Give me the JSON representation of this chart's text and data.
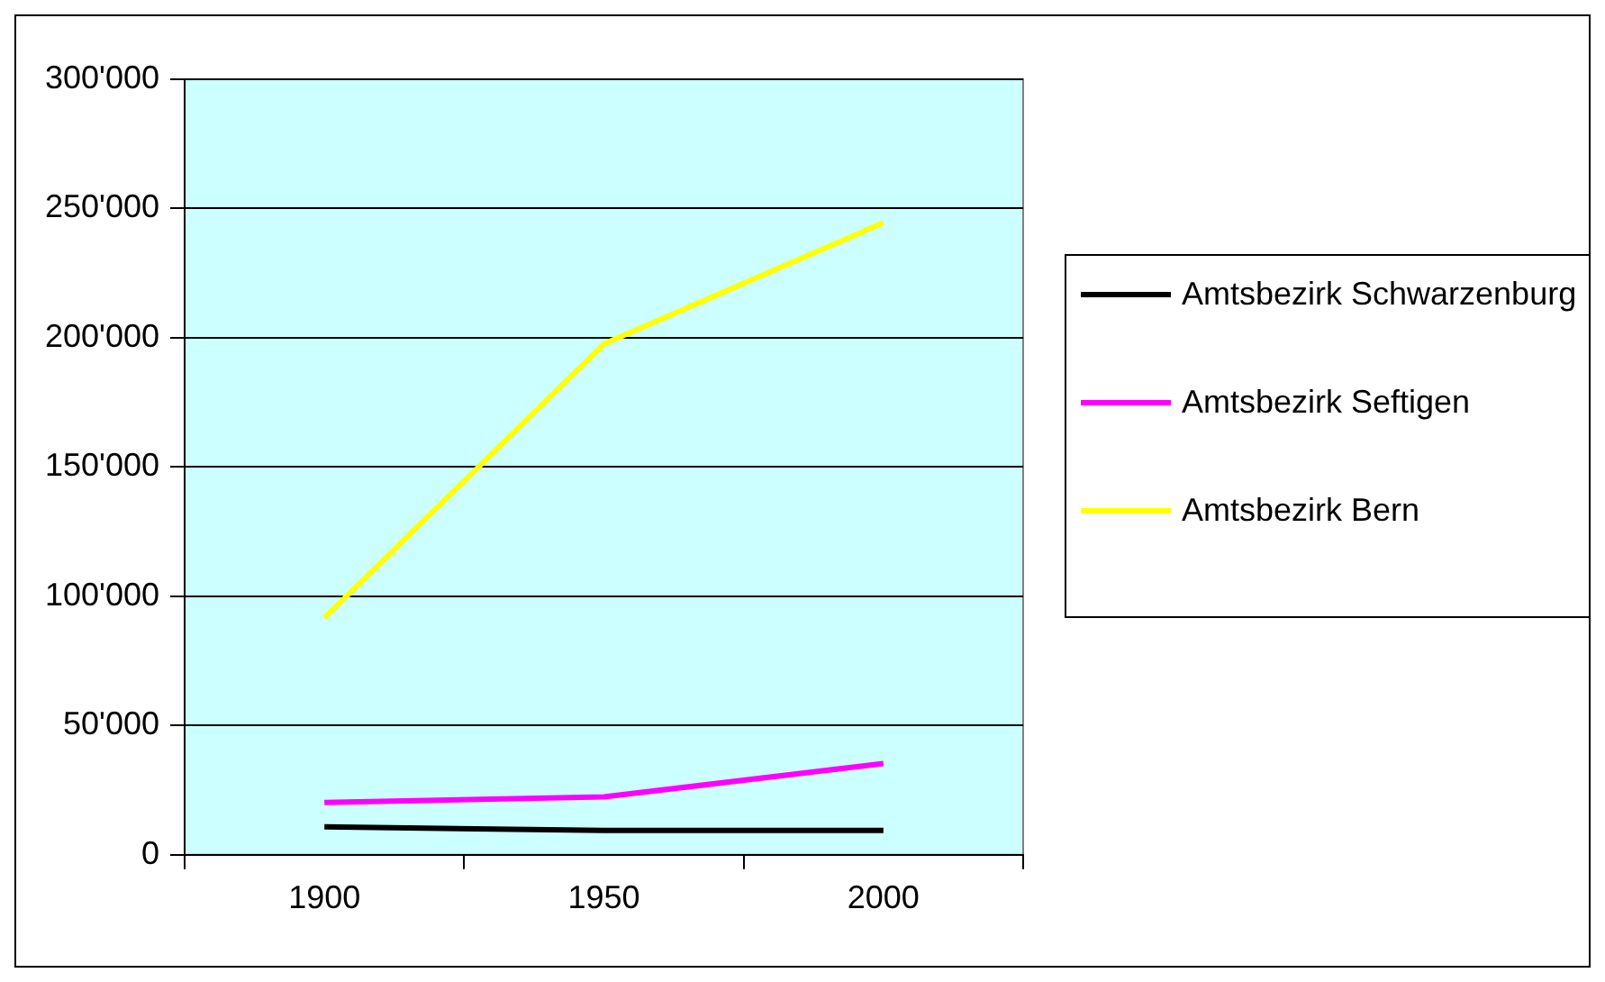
{
  "chart_data": {
    "type": "line",
    "categories": [
      "1900",
      "1950",
      "2000"
    ],
    "series": [
      {
        "name": "Amtsbezirk Schwarzenburg",
        "color": "#000000",
        "values": [
          10800,
          9400,
          9400
        ]
      },
      {
        "name": "Amtsbezirk Seftigen",
        "color": "#ff00ff",
        "values": [
          20200,
          22400,
          35300
        ]
      },
      {
        "name": "Amtsbezirk Bern",
        "color": "#ffff00",
        "values": [
          91600,
          197600,
          244500
        ]
      }
    ],
    "ylim": [
      0,
      300000
    ],
    "yticks": [
      {
        "value": 0,
        "label": "0"
      },
      {
        "value": 50000,
        "label": "50'000"
      },
      {
        "value": 100000,
        "label": "100'000"
      },
      {
        "value": 150000,
        "label": "150'000"
      },
      {
        "value": 200000,
        "label": "200'000"
      },
      {
        "value": 250000,
        "label": "250'000"
      },
      {
        "value": 300000,
        "label": "300'000"
      }
    ],
    "grid": "y",
    "legend": "right",
    "marker": "none",
    "line_style": "solid"
  }
}
